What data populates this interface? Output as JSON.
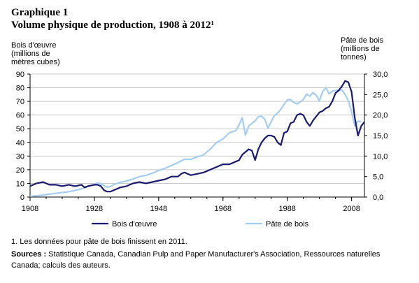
{
  "title_line1": "Graphique 1",
  "title_line2": "Volume physique de production, 1908 à 2012¹",
  "left_axis_title": [
    "Bois d'œuvre",
    "(millions de",
    "mètres cubes)"
  ],
  "right_axis_title": [
    "Pâte de bois",
    "(millions de",
    "tonnes)"
  ],
  "footnote": "1. Les données pour pâte de bois finissent en 2011.",
  "sources_label": "Sources :",
  "sources_text": "Statistique Canada, Canadian Pulp and Paper Manufacturer's Association, Ressources naturelles Canada; calculs des auteurs.",
  "colors": {
    "lumber": "#1a1a6e",
    "pulp": "#a4cdf0",
    "grid": "#c8c8c8"
  },
  "chart_data": {
    "type": "line",
    "title": "Volume physique de production, 1908 à 2012¹",
    "xlim": [
      1908,
      2012
    ],
    "x_ticks": [
      "1908",
      "1928",
      "1948",
      "1968",
      "1988",
      "2008"
    ],
    "x_tick_values": [
      1908,
      1928,
      1948,
      1968,
      1988,
      2008
    ],
    "y_left": {
      "label": "Bois d'œuvre (millions de mètres cubes)",
      "lim": [
        0,
        90
      ],
      "ticks": [
        "0",
        "10",
        "20",
        "30",
        "40",
        "50",
        "60",
        "70",
        "80",
        "90"
      ],
      "tick_values": [
        0,
        10,
        20,
        30,
        40,
        50,
        60,
        70,
        80,
        90
      ]
    },
    "y_right": {
      "label": "Pâte de bois (millions de tonnes)",
      "lim": [
        0,
        30
      ],
      "ticks": [
        "0,0",
        "5,0",
        "10,0",
        "15,0",
        "20,0",
        "25,0",
        "30,0"
      ],
      "tick_values": [
        0,
        5,
        10,
        15,
        20,
        25,
        30
      ]
    },
    "legend_position": "bottom",
    "grid": "horizontal",
    "series": [
      {
        "name": "Bois d'œuvre",
        "axis": "left",
        "color": "#1a1a6e",
        "points": [
          [
            1908,
            8
          ],
          [
            1910,
            10
          ],
          [
            1912,
            11
          ],
          [
            1914,
            9
          ],
          [
            1916,
            9
          ],
          [
            1918,
            8
          ],
          [
            1920,
            9
          ],
          [
            1922,
            8
          ],
          [
            1924,
            9
          ],
          [
            1925,
            7
          ],
          [
            1926,
            8
          ],
          [
            1928,
            9
          ],
          [
            1929,
            9
          ],
          [
            1930,
            8
          ],
          [
            1931,
            5
          ],
          [
            1932,
            4
          ],
          [
            1933,
            4
          ],
          [
            1934,
            5
          ],
          [
            1936,
            7
          ],
          [
            1938,
            8
          ],
          [
            1940,
            10
          ],
          [
            1942,
            11
          ],
          [
            1944,
            10
          ],
          [
            1946,
            11
          ],
          [
            1948,
            12
          ],
          [
            1950,
            13
          ],
          [
            1952,
            15
          ],
          [
            1954,
            15
          ],
          [
            1955,
            17
          ],
          [
            1956,
            18
          ],
          [
            1957,
            17
          ],
          [
            1958,
            16
          ],
          [
            1960,
            17
          ],
          [
            1962,
            18
          ],
          [
            1964,
            20
          ],
          [
            1966,
            22
          ],
          [
            1967,
            23
          ],
          [
            1968,
            24
          ],
          [
            1970,
            24
          ],
          [
            1972,
            26
          ],
          [
            1973,
            27
          ],
          [
            1974,
            31
          ],
          [
            1976,
            35
          ],
          [
            1977,
            34
          ],
          [
            1978,
            27
          ],
          [
            1979,
            35
          ],
          [
            1980,
            40
          ],
          [
            1981,
            43
          ],
          [
            1982,
            45
          ],
          [
            1983,
            45
          ],
          [
            1984,
            44
          ],
          [
            1985,
            40
          ],
          [
            1986,
            38
          ],
          [
            1987,
            47
          ],
          [
            1988,
            48
          ],
          [
            1989,
            54
          ],
          [
            1990,
            55
          ],
          [
            1991,
            60
          ],
          [
            1992,
            61
          ],
          [
            1993,
            60
          ],
          [
            1994,
            55
          ],
          [
            1995,
            52
          ],
          [
            1996,
            56
          ],
          [
            1997,
            59
          ],
          [
            1998,
            62
          ],
          [
            1999,
            63
          ],
          [
            2000,
            65
          ],
          [
            2001,
            66
          ],
          [
            2002,
            70
          ],
          [
            2003,
            76
          ],
          [
            2004,
            78
          ],
          [
            2005,
            81
          ],
          [
            2006,
            85
          ],
          [
            2007,
            84
          ],
          [
            2008,
            77
          ],
          [
            2009,
            58
          ],
          [
            2010,
            45
          ],
          [
            2011,
            52
          ],
          [
            2012,
            55
          ]
        ]
      },
      {
        "name": "Pâte de bois",
        "axis": "right",
        "color": "#a4cdf0",
        "points": [
          [
            1908,
            0.2
          ],
          [
            1910,
            0.3
          ],
          [
            1912,
            0.5
          ],
          [
            1914,
            0.7
          ],
          [
            1916,
            0.9
          ],
          [
            1918,
            1.1
          ],
          [
            1920,
            1.3
          ],
          [
            1922,
            1.6
          ],
          [
            1924,
            2.0
          ],
          [
            1926,
            2.6
          ],
          [
            1928,
            3.0
          ],
          [
            1929,
            3.5
          ],
          [
            1930,
            3.2
          ],
          [
            1931,
            2.8
          ],
          [
            1932,
            2.4
          ],
          [
            1933,
            2.6
          ],
          [
            1934,
            3.0
          ],
          [
            1936,
            3.6
          ],
          [
            1938,
            3.9
          ],
          [
            1940,
            4.4
          ],
          [
            1942,
            5.0
          ],
          [
            1944,
            5.3
          ],
          [
            1946,
            5.8
          ],
          [
            1948,
            6.5
          ],
          [
            1950,
            7.0
          ],
          [
            1952,
            7.7
          ],
          [
            1954,
            8.4
          ],
          [
            1956,
            9.2
          ],
          [
            1958,
            9.2
          ],
          [
            1960,
            9.8
          ],
          [
            1962,
            10.3
          ],
          [
            1964,
            11.7
          ],
          [
            1966,
            13.3
          ],
          [
            1968,
            14.2
          ],
          [
            1970,
            15.7
          ],
          [
            1972,
            16.2
          ],
          [
            1973,
            17.6
          ],
          [
            1974,
            19.4
          ],
          [
            1975,
            15.1
          ],
          [
            1976,
            17.3
          ],
          [
            1978,
            18.6
          ],
          [
            1979,
            19.6
          ],
          [
            1980,
            19.7
          ],
          [
            1981,
            19.0
          ],
          [
            1982,
            16.8
          ],
          [
            1983,
            18.4
          ],
          [
            1984,
            19.9
          ],
          [
            1985,
            20.5
          ],
          [
            1986,
            21.4
          ],
          [
            1987,
            22.6
          ],
          [
            1988,
            23.7
          ],
          [
            1989,
            23.8
          ],
          [
            1990,
            23.1
          ],
          [
            1991,
            22.7
          ],
          [
            1992,
            23.2
          ],
          [
            1993,
            23.8
          ],
          [
            1994,
            25.1
          ],
          [
            1995,
            24.6
          ],
          [
            1996,
            25.5
          ],
          [
            1997,
            24.8
          ],
          [
            1998,
            23.5
          ],
          [
            1999,
            25.7
          ],
          [
            2000,
            26.7
          ],
          [
            2001,
            25.2
          ],
          [
            2002,
            25.8
          ],
          [
            2003,
            26.0
          ],
          [
            2004,
            26.1
          ],
          [
            2005,
            26.1
          ],
          [
            2006,
            25.0
          ],
          [
            2007,
            23.5
          ],
          [
            2008,
            20.8
          ],
          [
            2009,
            17.3
          ],
          [
            2010,
            18.5
          ],
          [
            2011,
            18.4
          ]
        ]
      }
    ]
  }
}
